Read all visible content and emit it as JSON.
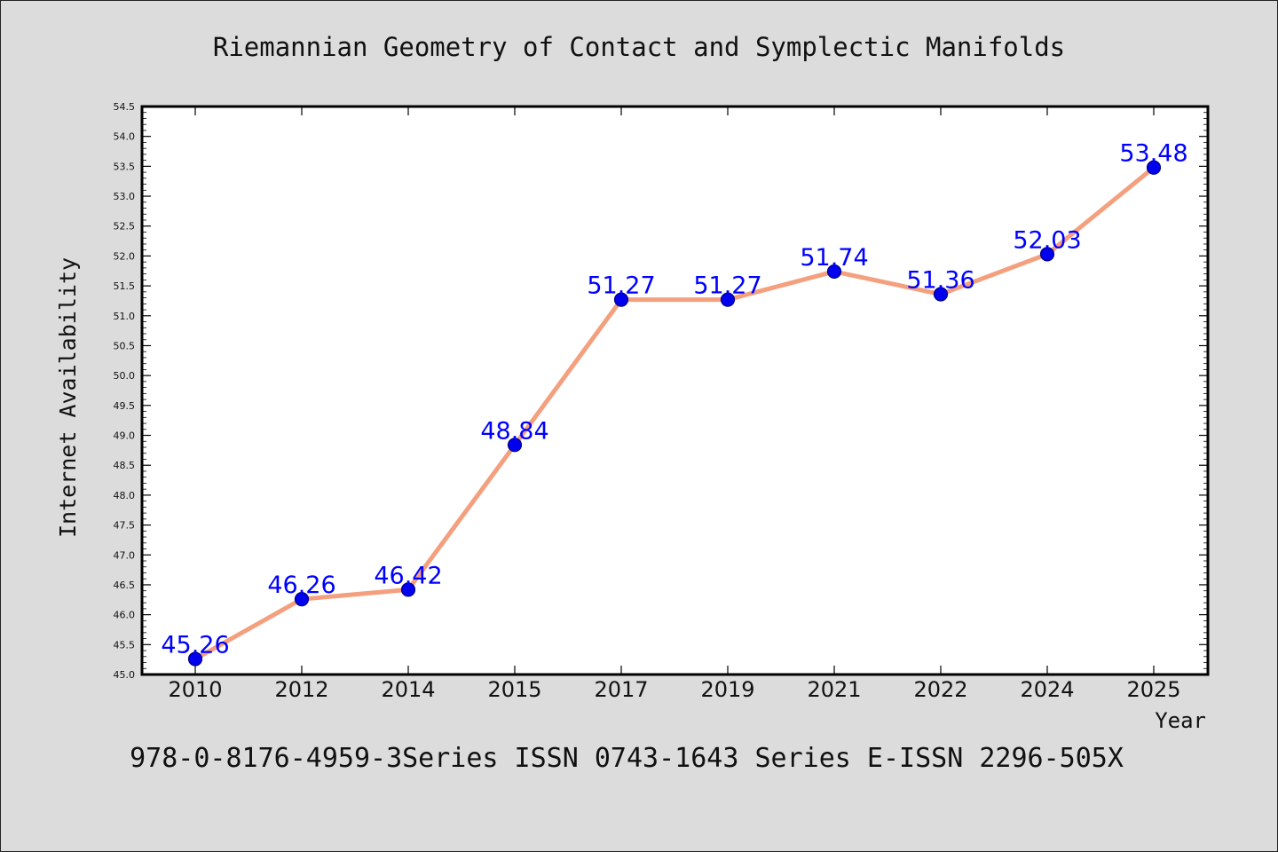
{
  "chart_data": {
    "type": "line",
    "title": "Riemannian Geometry of Contact and Symplectic Manifolds",
    "xlabel": "Year",
    "ylabel": "Internet Availability",
    "footer": "978-0-8176-4959-3Series ISSN 0743-1643 Series E-ISSN 2296-505X",
    "categories": [
      "2010",
      "2012",
      "2014",
      "2015",
      "2017",
      "2019",
      "2021",
      "2022",
      "2024",
      "2025"
    ],
    "values": [
      45.26,
      46.26,
      46.42,
      48.84,
      51.27,
      51.27,
      51.74,
      51.36,
      52.03,
      53.48
    ],
    "value_labels": [
      "45.26",
      "46.26",
      "46.42",
      "48.84",
      "51.27",
      "51.27",
      "51.74",
      "51.36",
      "52.03",
      "53.48"
    ],
    "ylim": [
      45.0,
      54.5
    ],
    "y_ticks": [
      "45.0",
      "45.5",
      "46.0",
      "46.5",
      "47.0",
      "47.5",
      "48.0",
      "48.5",
      "49.0",
      "49.5",
      "50.0",
      "50.5",
      "51.0",
      "51.5",
      "52.0",
      "52.5",
      "53.0",
      "53.5",
      "54.0",
      "54.5"
    ],
    "grid": false,
    "legend": "none",
    "colors": {
      "line": "#f4a07e",
      "marker": "#0000ee",
      "marker_edge": "#000080",
      "data_label": "#0000ff",
      "background": "#dcdcdc",
      "plot_background": "#ffffff"
    }
  }
}
